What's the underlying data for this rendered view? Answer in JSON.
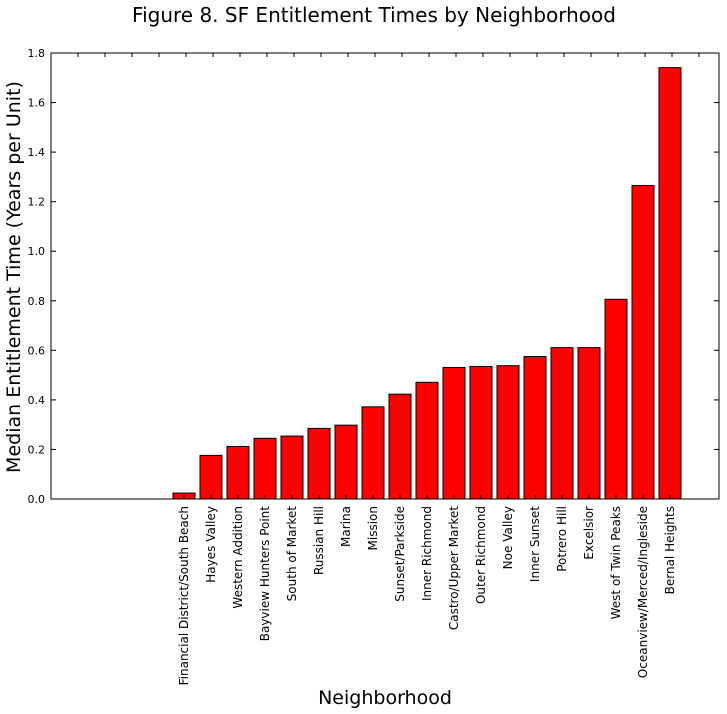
{
  "chart_data": {
    "type": "bar",
    "title": "Figure 8. SF Entitlement Times by Neighborhood",
    "xlabel": "Neighborhood",
    "ylabel": "Median Entitlement Time (Years per Unit)",
    "ylim": [
      0,
      1.8
    ],
    "yticks": [
      "0.0",
      "0.2",
      "0.4",
      "0.6",
      "0.8",
      "1.0",
      "1.2",
      "1.4",
      "1.6",
      "1.8"
    ],
    "grid": false,
    "bar_color": "#ff0000",
    "bar_edge_color": "#000000",
    "categories": [
      "Financial District/South Beach",
      "Hayes Valley",
      "Western Addition",
      "Bayview Hunters Point",
      "South of Market",
      "Russian Hill",
      "Marina",
      "Mission",
      "Sunset/Parkside",
      "Inner Richmond",
      "Castro/Upper Market",
      "Outer Richmond",
      "Noe Valley",
      "Inner Sunset",
      "Potrero Hill",
      "Excelsior",
      "West of Twin Peaks",
      "Oceanview/Merced/Ingleside",
      "Bernal Heights"
    ],
    "values": [
      0.024,
      0.176,
      0.212,
      0.245,
      0.254,
      0.285,
      0.298,
      0.372,
      0.423,
      0.471,
      0.531,
      0.535,
      0.538,
      0.575,
      0.611,
      0.611,
      0.806,
      1.265,
      1.741
    ]
  }
}
